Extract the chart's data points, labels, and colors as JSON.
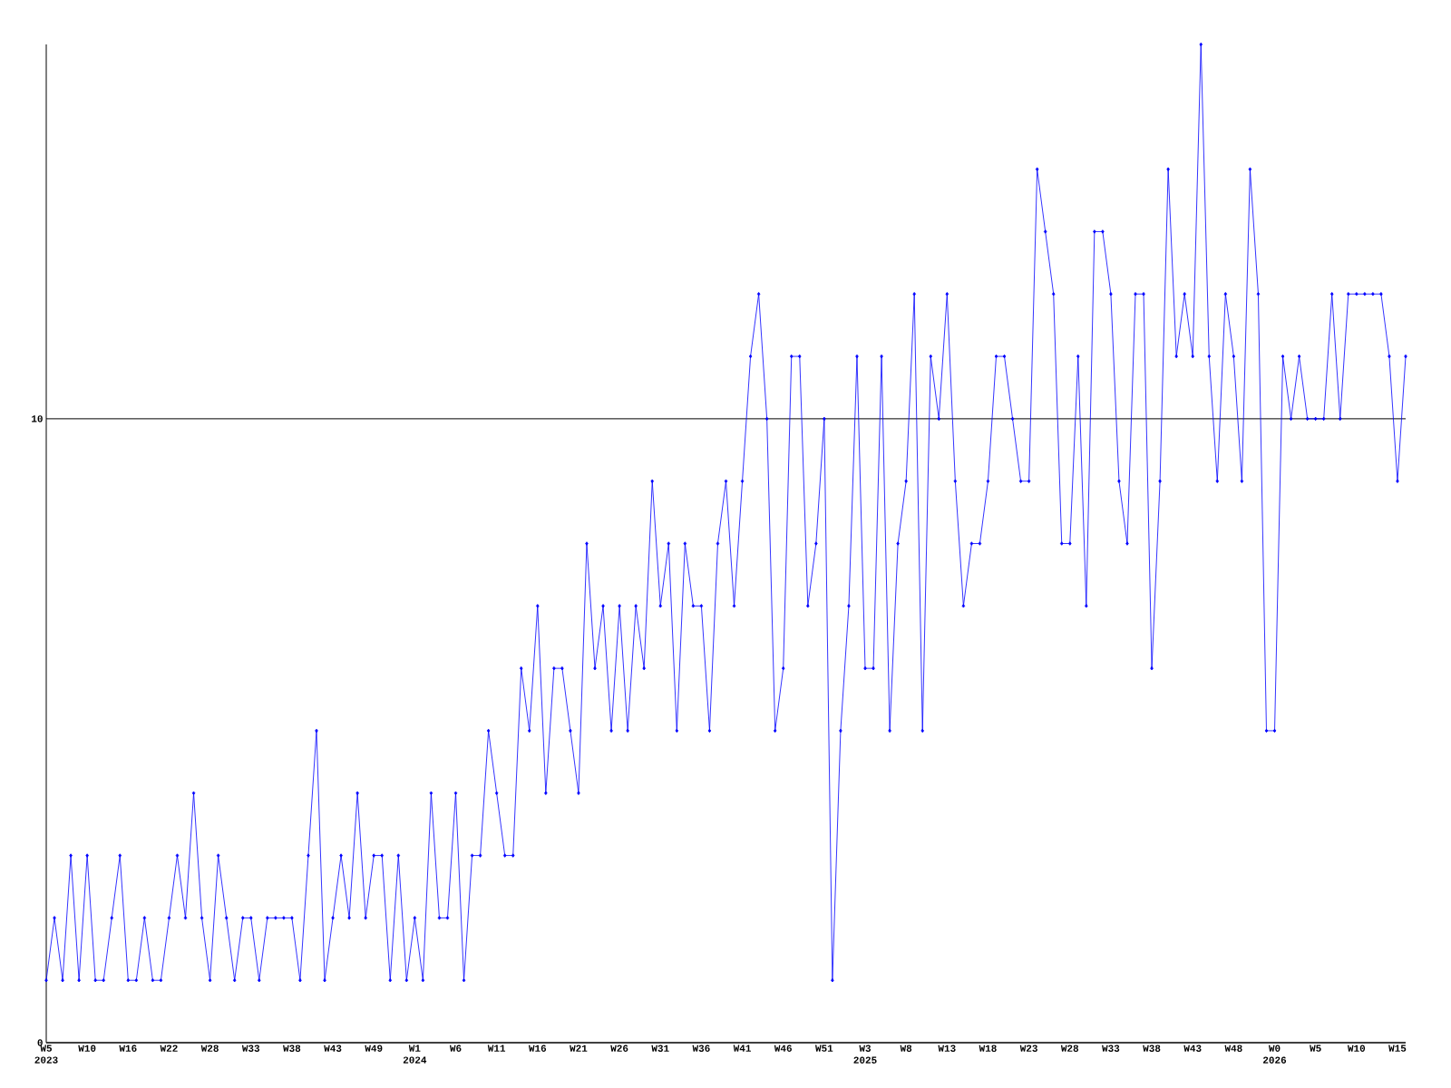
{
  "chart_data": {
    "type": "line",
    "color": "#0000ff",
    "marker": "diamond",
    "line_style": "solid",
    "grid": "y",
    "categories": [
      "W5 2023",
      null,
      null,
      null,
      null,
      "W10",
      null,
      null,
      null,
      null,
      "W16",
      null,
      null,
      null,
      null,
      "W22",
      null,
      null,
      null,
      null,
      "W28",
      null,
      null,
      null,
      null,
      "W33",
      null,
      null,
      null,
      null,
      "W38",
      null,
      null,
      null,
      null,
      "W43",
      null,
      null,
      null,
      null,
      "W49",
      null,
      null,
      null,
      null,
      "W1 2024",
      null,
      null,
      null,
      null,
      "W6",
      null,
      null,
      null,
      null,
      "W11",
      null,
      null,
      null,
      null,
      "W16",
      null,
      null,
      null,
      null,
      "W21",
      null,
      null,
      null,
      null,
      "W26",
      null,
      null,
      null,
      null,
      "W31",
      null,
      null,
      null,
      null,
      "W36",
      null,
      null,
      null,
      null,
      "W41",
      null,
      null,
      null,
      null,
      "W46",
      null,
      null,
      null,
      null,
      "W51",
      null,
      null,
      null,
      null,
      "W3 2025",
      null,
      null,
      null,
      null,
      "W8",
      null,
      null,
      null,
      null,
      "W13",
      null,
      null,
      null,
      null,
      "W18",
      null,
      null,
      null,
      null,
      "W23",
      null,
      null,
      null,
      null,
      "W28",
      null,
      null,
      null,
      null,
      "W33",
      null,
      null,
      null,
      null,
      "W38",
      null,
      null,
      null,
      null,
      "W43",
      null,
      null,
      null,
      null,
      "W48",
      null,
      null,
      null,
      null,
      "W0 2026",
      null,
      null,
      null,
      null,
      "W5",
      null,
      null,
      null,
      null,
      "W10",
      null,
      null,
      null,
      null,
      "W15",
      null
    ],
    "values": [
      1,
      2,
      1,
      3,
      1,
      3,
      1,
      1,
      2,
      3,
      1,
      1,
      2,
      1,
      1,
      2,
      3,
      2,
      4,
      2,
      1,
      3,
      2,
      1,
      2,
      2,
      1,
      2,
      2,
      2,
      2,
      1,
      3,
      5,
      1,
      2,
      3,
      2,
      4,
      2,
      3,
      3,
      1,
      3,
      1,
      2,
      1,
      4,
      2,
      2,
      4,
      1,
      3,
      3,
      5,
      4,
      3,
      3,
      6,
      5,
      7,
      4,
      6,
      6,
      5,
      4,
      8,
      6,
      7,
      5,
      7,
      5,
      7,
      6,
      9,
      7,
      8,
      5,
      8,
      7,
      7,
      5,
      8,
      9,
      7,
      9,
      11,
      12,
      10,
      5,
      6,
      11,
      11,
      7,
      8,
      10,
      1,
      5,
      7,
      11,
      6,
      6,
      11,
      5,
      8,
      9,
      12,
      5,
      11,
      10,
      12,
      9,
      7,
      8,
      8,
      9,
      11,
      11,
      10,
      9,
      9,
      14,
      13,
      12,
      8,
      8,
      11,
      7,
      13,
      13,
      12,
      9,
      8,
      12,
      12,
      6,
      9,
      14,
      11,
      12,
      11,
      16,
      11,
      9,
      12,
      11,
      9,
      14,
      12,
      5,
      5,
      11,
      10,
      11,
      10,
      10,
      10,
      12,
      10,
      12,
      12,
      12,
      12,
      12,
      11,
      9,
      11
    ],
    "ylim": [
      0,
      16
    ],
    "yticks": [
      0,
      10
    ]
  }
}
